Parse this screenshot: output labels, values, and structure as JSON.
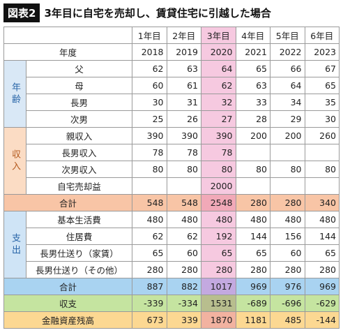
{
  "header": {
    "badge": "図表2",
    "title": "3年目に自宅を売却し、賃貸住宅に引越した場合"
  },
  "table": {
    "year_label": "年度",
    "columns": [
      {
        "label": "1年目",
        "year": 2018
      },
      {
        "label": "2年目",
        "year": 2019
      },
      {
        "label": "3年目",
        "year": 2020
      },
      {
        "label": "4年目",
        "year": 2021
      },
      {
        "label": "5年目",
        "year": 2022
      },
      {
        "label": "6年目",
        "year": 2023
      }
    ],
    "sections": [
      {
        "label": "年齢",
        "rows": [
          {
            "label": "父",
            "values": [
              62,
              63,
              64,
              65,
              66,
              67
            ]
          },
          {
            "label": "母",
            "values": [
              60,
              61,
              62,
              63,
              64,
              65
            ]
          },
          {
            "label": "長男",
            "values": [
              30,
              31,
              32,
              33,
              34,
              35
            ]
          },
          {
            "label": "次男",
            "values": [
              25,
              26,
              27,
              28,
              29,
              30
            ]
          }
        ]
      },
      {
        "label": "収入",
        "rows": [
          {
            "label": "親収入",
            "values": [
              390,
              390,
              390,
              200,
              200,
              260
            ]
          },
          {
            "label": "長男収入",
            "values": [
              78,
              78,
              78,
              null,
              null,
              null
            ]
          },
          {
            "label": "次男収入",
            "values": [
              80,
              80,
              80,
              80,
              80,
              80
            ]
          },
          {
            "label": "自宅売却益",
            "values": [
              null,
              null,
              2000,
              null,
              null,
              null
            ]
          }
        ],
        "total": {
          "label": "合計",
          "values": [
            548,
            548,
            2548,
            280,
            280,
            340
          ]
        }
      },
      {
        "label": "支出",
        "rows": [
          {
            "label": "基本生活費",
            "values": [
              480,
              480,
              480,
              480,
              480,
              480
            ]
          },
          {
            "label": "住居費",
            "values": [
              62,
              62,
              192,
              144,
              156,
              144
            ]
          },
          {
            "label": "長男仕送り（家賃）",
            "values": [
              65,
              60,
              65,
              65,
              60,
              65
            ]
          },
          {
            "label": "長男仕送り（その他）",
            "values": [
              280,
              280,
              280,
              280,
              280,
              280
            ]
          }
        ],
        "total": {
          "label": "合計",
          "values": [
            887,
            882,
            1017,
            969,
            976,
            969
          ]
        }
      }
    ],
    "summary": [
      {
        "label": "収支",
        "values": [
          -339,
          -334,
          1531,
          -689,
          -696,
          -629
        ]
      },
      {
        "label": "金融資産残高",
        "values": [
          673,
          339,
          1870,
          1181,
          485,
          -144
        ]
      }
    ]
  }
}
